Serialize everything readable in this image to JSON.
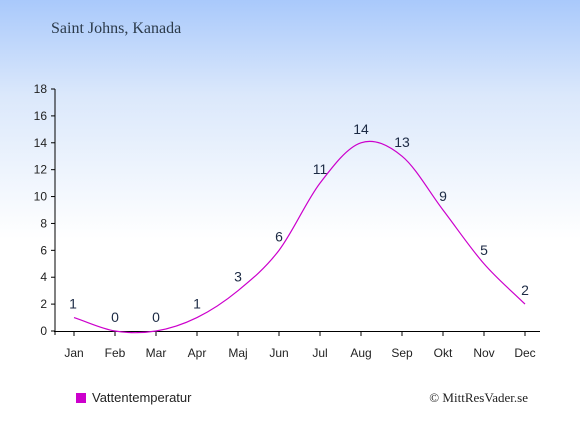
{
  "chart_data": {
    "type": "line",
    "title": "Saint Johns, Kanada",
    "categories": [
      "Jan",
      "Feb",
      "Mar",
      "Apr",
      "Maj",
      "Jun",
      "Jul",
      "Aug",
      "Sep",
      "Okt",
      "Nov",
      "Dec"
    ],
    "series": [
      {
        "name": "Vattentemperatur",
        "values": [
          1,
          0,
          0,
          1,
          3,
          6,
          11,
          14,
          13,
          9,
          5,
          2
        ],
        "color": "#cc00cc"
      }
    ],
    "xlabel": "",
    "ylabel": "",
    "ylim": [
      0,
      18
    ],
    "yticks": [
      0,
      2,
      4,
      6,
      8,
      10,
      12,
      14,
      16,
      18
    ],
    "grid": false,
    "legend": "bottom-left"
  },
  "footer": {
    "credit": "© MittResVader.se"
  }
}
